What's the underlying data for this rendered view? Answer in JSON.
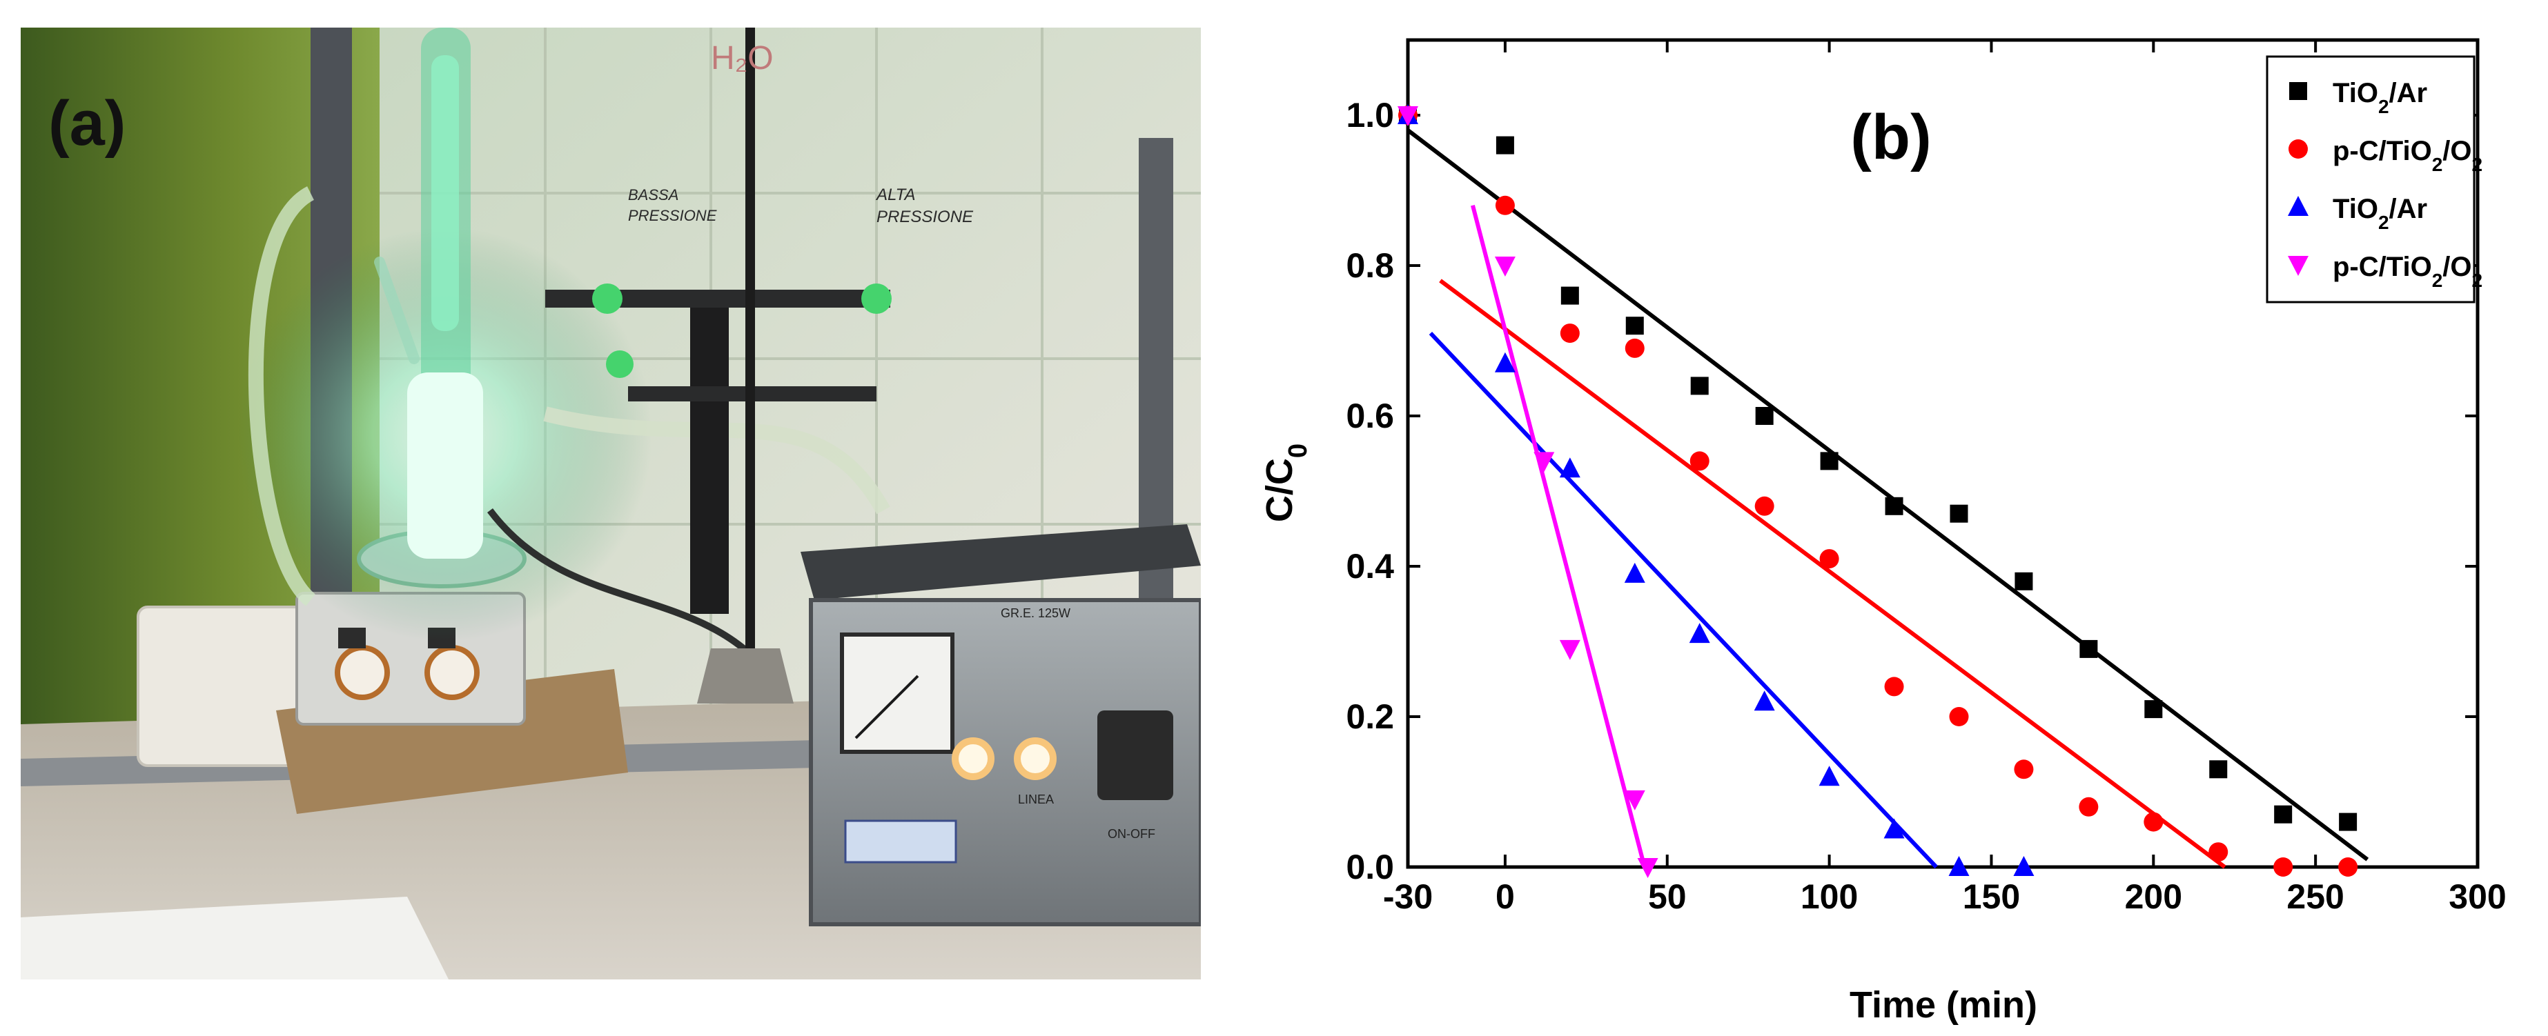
{
  "panel_a": {
    "label": "(a)",
    "wall_label": "H₂O",
    "note_low": [
      "BASSA",
      "PRESSIONE"
    ],
    "note_high": [
      "ALTA",
      "PRESSIONE"
    ],
    "device_label": "GR.E. 125W",
    "lamp_label": "LINEA",
    "switch_label": "ON-OFF"
  },
  "chart_data": {
    "type": "scatter",
    "panel_label": "(b)",
    "xlabel": "Time (min)",
    "ylabel": "C/C0",
    "xlim": [
      -30,
      300
    ],
    "ylim": [
      0,
      1.1
    ],
    "xticks": [
      -30,
      0,
      50,
      100,
      150,
      200,
      250,
      300
    ],
    "yticks": [
      0.0,
      0.2,
      0.4,
      0.6,
      0.8,
      1.0
    ],
    "legend_position": "top-right",
    "series": [
      {
        "name": "TiO2/Ar",
        "marker": "square",
        "color": "#000000",
        "x": [
          -30,
          0,
          20,
          40,
          60,
          80,
          100,
          120,
          140,
          160,
          180,
          200,
          220,
          240,
          260
        ],
        "y": [
          1.0,
          0.96,
          0.76,
          0.72,
          0.64,
          0.6,
          0.54,
          0.48,
          0.47,
          0.38,
          0.29,
          0.21,
          0.13,
          0.07,
          0.06
        ],
        "fit": {
          "x": [
            -30,
            266
          ],
          "y": [
            0.98,
            0.01
          ]
        }
      },
      {
        "name": "p-C/TiO2/O2",
        "marker": "circle",
        "color": "#ff0000",
        "x": [
          -30,
          0,
          20,
          40,
          60,
          80,
          100,
          120,
          140,
          160,
          180,
          200,
          220,
          240,
          260
        ],
        "y": [
          1.0,
          0.88,
          0.71,
          0.69,
          0.54,
          0.48,
          0.41,
          0.24,
          0.2,
          0.13,
          0.08,
          0.06,
          0.02,
          0.0,
          0.0
        ],
        "fit": {
          "x": [
            -20,
            222
          ],
          "y": [
            0.78,
            0.0
          ]
        }
      },
      {
        "name": "TiO2/Ar",
        "marker": "triangle-up",
        "color": "#0000ff",
        "x": [
          -30,
          0,
          20,
          40,
          60,
          80,
          100,
          120,
          140,
          160
        ],
        "y": [
          1.0,
          0.67,
          0.53,
          0.39,
          0.31,
          0.22,
          0.12,
          0.05,
          0.0,
          0.0
        ],
        "fit": {
          "x": [
            -23,
            133
          ],
          "y": [
            0.71,
            0.0
          ]
        }
      },
      {
        "name": "p-C/TiO2/O2",
        "marker": "triangle-down",
        "color": "#ff00ff",
        "x": [
          -30,
          0,
          12,
          20,
          40,
          44
        ],
        "y": [
          1.0,
          0.8,
          0.54,
          0.29,
          0.09,
          0.0
        ],
        "fit": {
          "x": [
            -10,
            43
          ],
          "y": [
            0.88,
            0.0
          ]
        }
      }
    ]
  }
}
